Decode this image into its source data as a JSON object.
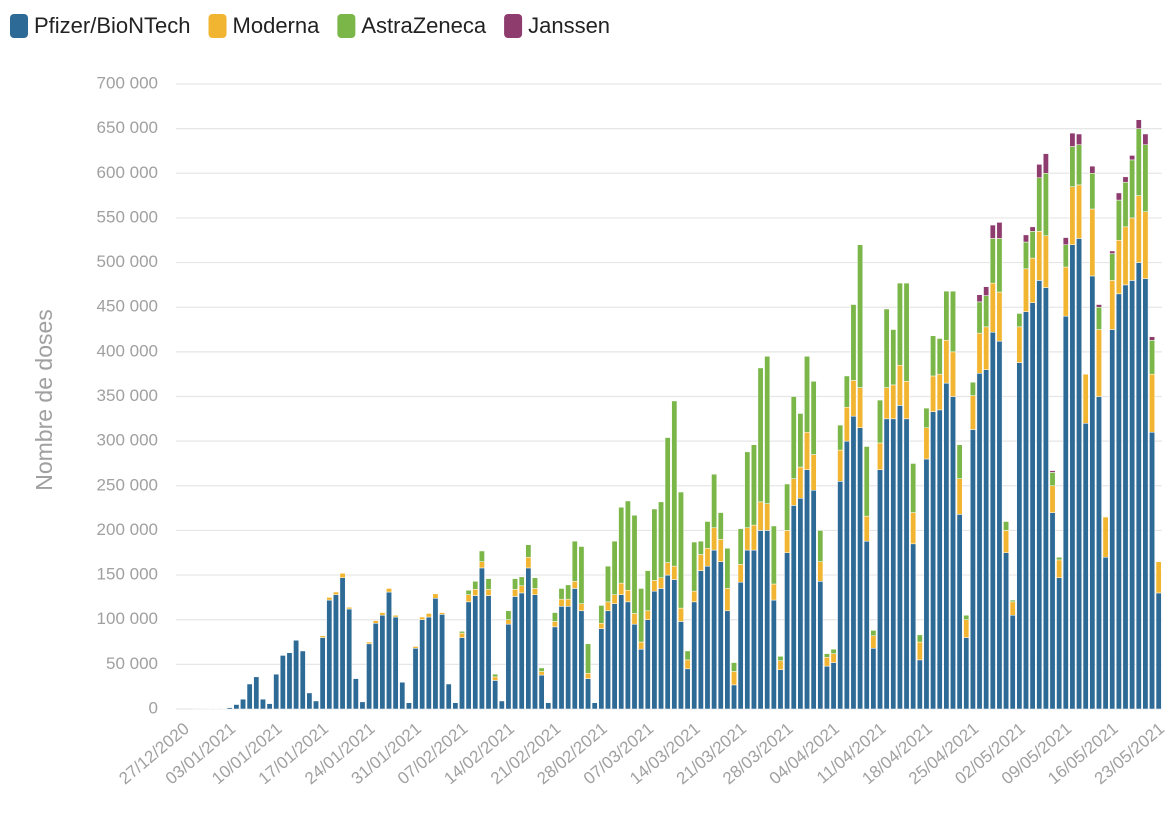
{
  "chart_data": {
    "type": "stacked_bar",
    "y_label": "Nombre de doses",
    "categories": [
      "27/12/2020",
      null,
      null,
      null,
      null,
      null,
      null,
      "03/01/2021",
      null,
      null,
      null,
      null,
      null,
      null,
      "10/01/2021",
      null,
      null,
      null,
      null,
      null,
      null,
      "17/01/2021",
      null,
      null,
      null,
      null,
      null,
      null,
      "24/01/2021",
      null,
      null,
      null,
      null,
      null,
      null,
      "31/01/2021",
      null,
      null,
      null,
      null,
      null,
      null,
      "07/02/2021",
      null,
      null,
      null,
      null,
      null,
      null,
      "14/02/2021",
      null,
      null,
      null,
      null,
      null,
      null,
      "21/02/2021",
      null,
      null,
      null,
      null,
      null,
      null,
      "28/02/2021",
      null,
      null,
      null,
      null,
      null,
      null,
      "07/03/2021",
      null,
      null,
      null,
      null,
      null,
      null,
      "14/03/2021",
      null,
      null,
      null,
      null,
      null,
      null,
      "21/03/2021",
      null,
      null,
      null,
      null,
      null,
      null,
      "28/03/2021",
      null,
      null,
      null,
      null,
      null,
      null,
      "04/04/2021",
      null,
      null,
      null,
      null,
      null,
      null,
      "11/04/2021",
      null,
      null,
      null,
      null,
      null,
      null,
      "18/04/2021",
      null,
      null,
      null,
      null,
      null,
      null,
      "25/04/2021",
      null,
      null,
      null,
      null,
      null,
      null,
      "02/05/2021",
      null,
      null,
      null,
      null,
      null,
      null,
      "09/05/2021",
      null,
      null,
      null,
      null,
      null,
      null,
      "16/05/2021",
      null,
      null,
      null,
      null,
      null,
      null,
      "23/05/2021"
    ],
    "series": [
      {
        "name": "Pfizer/BioNTech",
        "color": "#2e6a96",
        "values": [
          0,
          0,
          100,
          200,
          300,
          300,
          400,
          1500,
          5000,
          11000,
          28000,
          36000,
          11000,
          6000,
          39000,
          60000,
          63000,
          77000,
          65000,
          18000,
          9000,
          80000,
          122000,
          128000,
          147000,
          112000,
          34000,
          8000,
          73000,
          96000,
          105000,
          131000,
          103000,
          30000,
          7000,
          68000,
          100000,
          103000,
          124000,
          106000,
          28000,
          7000,
          80000,
          120000,
          127000,
          158000,
          127000,
          32000,
          9000,
          95000,
          126000,
          130000,
          158000,
          128000,
          38000,
          7000,
          92000,
          115000,
          115000,
          135000,
          110000,
          34000,
          7000,
          90000,
          110000,
          118000,
          128000,
          120000,
          95000,
          67000,
          100000,
          132000,
          135000,
          150000,
          145000,
          98000,
          45000,
          120000,
          155000,
          160000,
          178000,
          165000,
          110000,
          27000,
          142000,
          178000,
          178000,
          200000,
          200000,
          122000,
          44000,
          175000,
          228000,
          236000,
          268000,
          245000,
          143000,
          48000,
          52000,
          255000,
          300000,
          328000,
          315000,
          188000,
          68000,
          268000,
          325000,
          325000,
          340000,
          325000,
          185000,
          55000,
          280000,
          333000,
          335000,
          365000,
          350000,
          218000,
          80000,
          313000,
          376000,
          380000,
          422000,
          412000,
          175000,
          105000,
          388000,
          445000,
          455000,
          480000,
          472000,
          220000,
          147000,
          440000,
          520000,
          527000,
          320000,
          485000,
          350000,
          170000,
          425000,
          465000,
          475000,
          480000,
          500000,
          482000,
          310000,
          130000
        ]
      },
      {
        "name": "Moderna",
        "color": "#f2b531",
        "values": [
          0,
          0,
          0,
          0,
          0,
          0,
          0,
          0,
          0,
          0,
          0,
          0,
          0,
          0,
          0,
          0,
          0,
          0,
          0,
          0,
          0,
          2000,
          3000,
          3000,
          5000,
          2000,
          0,
          0,
          2000,
          3000,
          3000,
          4000,
          2000,
          0,
          0,
          2000,
          3000,
          4000,
          5000,
          2000,
          0,
          0,
          5000,
          8000,
          7000,
          7000,
          7000,
          4000,
          0,
          5000,
          8000,
          8000,
          12000,
          7000,
          4000,
          0,
          6000,
          8000,
          8000,
          8000,
          8000,
          6000,
          0,
          6000,
          10000,
          10000,
          13000,
          13000,
          12000,
          8000,
          10000,
          12000,
          12000,
          14000,
          15000,
          15000,
          10000,
          12000,
          18000,
          20000,
          25000,
          25000,
          25000,
          15000,
          20000,
          25000,
          28000,
          32000,
          30000,
          18000,
          10000,
          25000,
          30000,
          35000,
          42000,
          40000,
          22000,
          10000,
          10000,
          35000,
          38000,
          40000,
          45000,
          28000,
          14000,
          30000,
          35000,
          38000,
          45000,
          42000,
          35000,
          20000,
          35000,
          40000,
          40000,
          48000,
          50000,
          40000,
          20000,
          38000,
          45000,
          48000,
          55000,
          55000,
          25000,
          15000,
          40000,
          48000,
          50000,
          55000,
          58000,
          30000,
          20000,
          55000,
          65000,
          60000,
          55000,
          75000,
          75000,
          45000,
          55000,
          60000,
          65000,
          70000,
          75000,
          75000,
          65000,
          35000
        ]
      },
      {
        "name": "AstraZeneca",
        "color": "#7ab648",
        "values": [
          0,
          0,
          0,
          0,
          0,
          0,
          0,
          0,
          0,
          0,
          0,
          0,
          0,
          0,
          0,
          0,
          0,
          0,
          0,
          0,
          0,
          0,
          0,
          0,
          0,
          0,
          0,
          0,
          0,
          0,
          0,
          0,
          0,
          0,
          0,
          0,
          0,
          0,
          0,
          0,
          0,
          0,
          2000,
          5000,
          9000,
          12000,
          12000,
          3000,
          0,
          10000,
          12000,
          10000,
          14000,
          12000,
          4000,
          0,
          10000,
          12000,
          16000,
          45000,
          64000,
          33000,
          0,
          20000,
          40000,
          60000,
          85000,
          100000,
          110000,
          60000,
          45000,
          80000,
          85000,
          140000,
          185000,
          130000,
          10000,
          55000,
          15000,
          30000,
          60000,
          30000,
          45000,
          10000,
          40000,
          85000,
          90000,
          150000,
          165000,
          65000,
          5000,
          52000,
          92000,
          60000,
          85000,
          82000,
          35000,
          4000,
          5000,
          28000,
          35000,
          85000,
          160000,
          78000,
          6000,
          48000,
          88000,
          62000,
          92000,
          110000,
          55000,
          8000,
          22000,
          45000,
          40000,
          55000,
          68000,
          38000,
          5000,
          15000,
          35000,
          35000,
          50000,
          60000,
          10000,
          2000,
          15000,
          30000,
          30000,
          60000,
          70000,
          15000,
          3000,
          25000,
          45000,
          45000,
          0,
          40000,
          25000,
          0,
          30000,
          45000,
          50000,
          65000,
          75000,
          75000,
          38000,
          0
        ]
      },
      {
        "name": "Janssen",
        "color": "#8e3b6e",
        "values": [
          0,
          0,
          0,
          0,
          0,
          0,
          0,
          0,
          0,
          0,
          0,
          0,
          0,
          0,
          0,
          0,
          0,
          0,
          0,
          0,
          0,
          0,
          0,
          0,
          0,
          0,
          0,
          0,
          0,
          0,
          0,
          0,
          0,
          0,
          0,
          0,
          0,
          0,
          0,
          0,
          0,
          0,
          0,
          0,
          0,
          0,
          0,
          0,
          0,
          0,
          0,
          0,
          0,
          0,
          0,
          0,
          0,
          0,
          0,
          0,
          0,
          0,
          0,
          0,
          0,
          0,
          0,
          0,
          0,
          0,
          0,
          0,
          0,
          0,
          0,
          0,
          0,
          0,
          0,
          0,
          0,
          0,
          0,
          0,
          0,
          0,
          0,
          0,
          0,
          0,
          0,
          0,
          0,
          0,
          0,
          0,
          0,
          0,
          0,
          0,
          0,
          0,
          0,
          0,
          0,
          0,
          0,
          0,
          0,
          0,
          0,
          0,
          0,
          0,
          0,
          0,
          0,
          0,
          0,
          0,
          8000,
          10000,
          15000,
          18000,
          0,
          0,
          0,
          8000,
          5000,
          15000,
          22000,
          2000,
          0,
          8000,
          15000,
          12000,
          0,
          8000,
          3000,
          0,
          3000,
          8000,
          6000,
          5000,
          10000,
          12000,
          4000,
          0
        ]
      }
    ],
    "ylim": [
      0,
      700000
    ],
    "yticks": [
      0,
      {
        "value": 50000,
        "label": "50 000"
      },
      {
        "value": 100000,
        "label": "100 000"
      },
      {
        "value": 150000,
        "label": "150 000"
      },
      {
        "value": 200000,
        "label": "200 000"
      },
      {
        "value": 250000,
        "label": "250 000"
      },
      {
        "value": 300000,
        "label": "300 000"
      },
      {
        "value": 350000,
        "label": "350 000"
      },
      {
        "value": 400000,
        "label": "400 000"
      },
      {
        "value": 450000,
        "label": "450 000"
      },
      {
        "value": 500000,
        "label": "500 000"
      },
      {
        "value": 550000,
        "label": "550 000"
      },
      {
        "value": 600000,
        "label": "600 000"
      },
      {
        "value": 650000,
        "label": "650 000"
      },
      {
        "value": 700000,
        "label": "700 000"
      }
    ],
    "grid": true,
    "legend": "top-left"
  }
}
